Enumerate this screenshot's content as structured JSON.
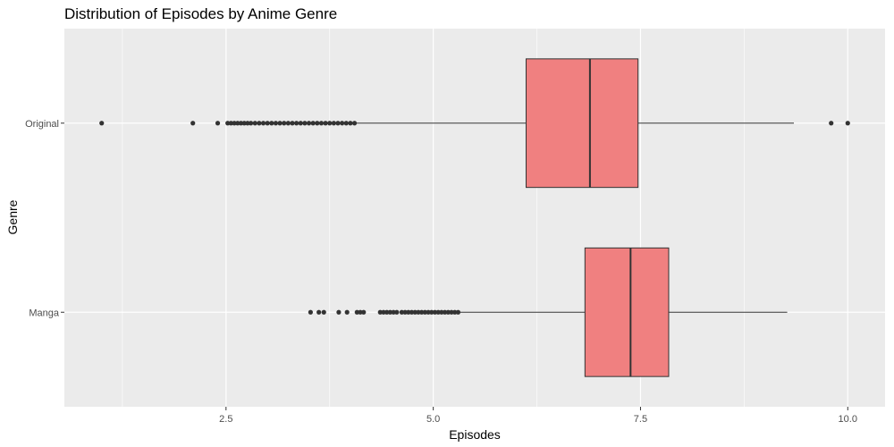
{
  "chart_data": {
    "type": "boxplot",
    "title": "Distribution of Episodes by Anime Genre",
    "xlabel": "Episodes",
    "ylabel": "Genre",
    "xlim": [
      0.55,
      10.45
    ],
    "x_ticks": [
      2.5,
      5.0,
      7.5,
      10.0
    ],
    "x_tick_labels": [
      "2.5",
      "5.0",
      "7.5",
      "10.0"
    ],
    "grid": true,
    "orientation": "horizontal",
    "fill_color": "#F08080",
    "panel_color": "#EBEBEB",
    "categories": [
      "Original",
      "Manga"
    ],
    "boxes": [
      {
        "name": "Original",
        "whisker_low": 4.06,
        "q1": 6.12,
        "median": 6.89,
        "q3": 7.47,
        "whisker_high": 9.35,
        "outliers": [
          1.0,
          2.1,
          2.4,
          2.52,
          2.56,
          2.6,
          2.64,
          2.68,
          2.72,
          2.76,
          2.8,
          2.85,
          2.9,
          2.95,
          3.0,
          3.05,
          3.1,
          3.15,
          3.2,
          3.25,
          3.3,
          3.35,
          3.4,
          3.45,
          3.5,
          3.55,
          3.6,
          3.65,
          3.7,
          3.75,
          3.8,
          3.85,
          3.9,
          3.95,
          4.0,
          4.05,
          9.8,
          10.0
        ]
      },
      {
        "name": "Manga",
        "whisker_low": 5.32,
        "q1": 6.83,
        "median": 7.38,
        "q3": 7.84,
        "whisker_high": 9.27,
        "outliers": [
          3.52,
          3.62,
          3.68,
          3.86,
          3.96,
          4.08,
          4.12,
          4.16,
          4.36,
          4.4,
          4.44,
          4.48,
          4.52,
          4.56,
          4.62,
          4.66,
          4.7,
          4.74,
          4.78,
          4.82,
          4.86,
          4.9,
          4.94,
          4.98,
          5.02,
          5.06,
          5.1,
          5.14,
          5.18,
          5.22,
          5.26,
          5.3
        ]
      }
    ]
  }
}
